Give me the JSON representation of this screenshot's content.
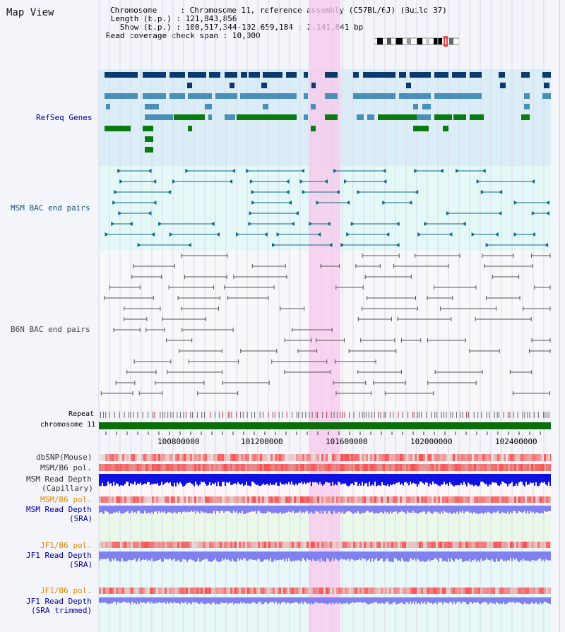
{
  "page": {
    "title": "Map View"
  },
  "info": {
    "chromosome_label": "Chromosome",
    "chromosome_value": "Chromosome 11, reference assembly (C57BL/6J) (Build 37)",
    "length_label": "Length (b.p.)",
    "length_value": "121,843,856",
    "show_label": "Show (b.p.)",
    "show_value": "100,517,344-102,659,184 : 2,141,841 bp",
    "coverage_label": "Read coverage check span",
    "coverage_value": "10,000"
  },
  "tracks": {
    "refseq": "RefSeq Genes",
    "msm_bac": "MSM BAC end pairs",
    "b6n_bac": "B6N BAC end pairs",
    "repeat": "Repeat",
    "chromosome": "chromosome 11",
    "dbsnp": "dbSNP(Mouse)",
    "msm_b6_pol": "MSM/B6 pol.",
    "msm_depth_cap_1": "MSM Read Depth",
    "msm_depth_cap_2": "(Capillary)",
    "msm_b6_pol_sra": "MSM/B6 pol.",
    "msm_depth_sra_1": "MSM Read Depth",
    "msm_depth_sra_2": "(SRA)",
    "jf1_b6_pol": "JF1/B6 pol.",
    "jf1_depth_sra_1": "JF1 Read Depth",
    "jf1_depth_sra_2": "(SRA)",
    "jf1_b6_pol_trim": "JF1/B6 pol.",
    "jf1_depth_trim_1": "JF1 Read Depth",
    "jf1_depth_trim_2": "(SRA trimmed)"
  },
  "axis": {
    "ticks": [
      "100800000",
      "101200000",
      "101600000",
      "102000000",
      "102400000"
    ]
  },
  "colors": {
    "refseq_bg": "#dbeef8",
    "msm_bg": "#e4f8f8",
    "highlight": "#f8d4f0",
    "gene_dark": "#0a3a6e",
    "gene_mid": "#4a8fb8",
    "gene_green": "#0b7a10",
    "msm_line": "#0e6a8a",
    "b6n_line": "#555555",
    "chrom_bar": "#0a6e0a",
    "pol_red": "#e8323c",
    "depth_dark": "#1010e0",
    "depth_light": "#8080f0",
    "label_blue": "#0000a0",
    "label_orange": "#e08a00",
    "label_teal": "#0e5a7a"
  }
}
